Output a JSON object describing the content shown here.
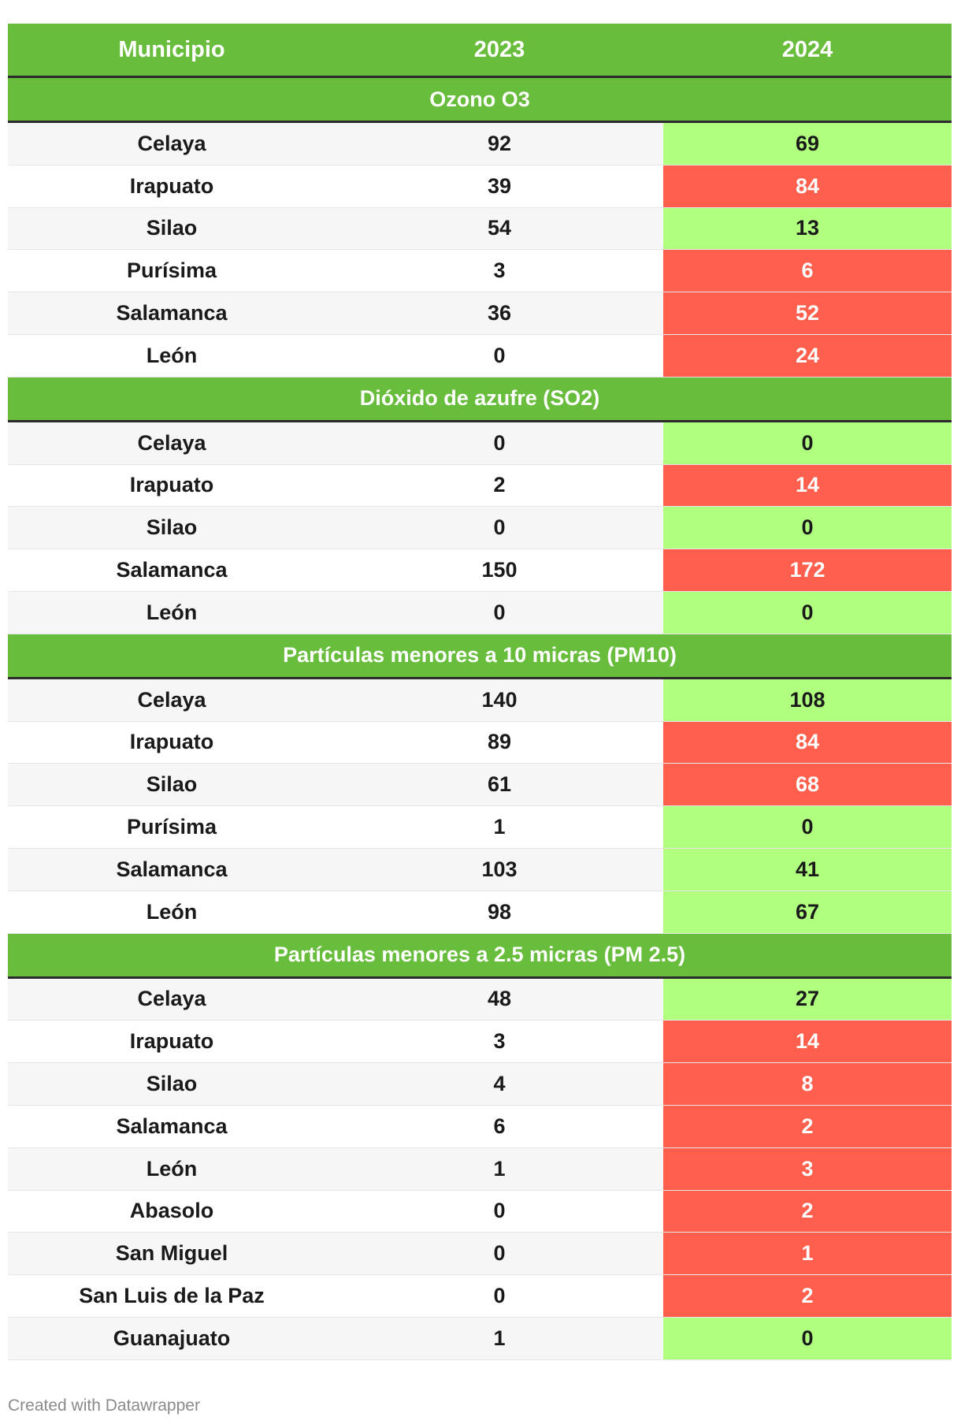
{
  "chart_data": {
    "type": "table",
    "columns": [
      "Municipio",
      "2023",
      "2024"
    ],
    "colors": {
      "header": "#68bd3c",
      "good": "#b1ff7e",
      "bad": "#ff5f4c"
    },
    "sections": [
      {
        "title": "Ozono O3",
        "rows": [
          {
            "municipio": "Celaya",
            "y2023": "92",
            "y2024": "69",
            "status": "good"
          },
          {
            "municipio": "Irapuato",
            "y2023": "39",
            "y2024": "84",
            "status": "bad"
          },
          {
            "municipio": "Silao",
            "y2023": "54",
            "y2024": "13",
            "status": "good"
          },
          {
            "municipio": "Purísima",
            "y2023": "3",
            "y2024": "6",
            "status": "bad"
          },
          {
            "municipio": "Salamanca",
            "y2023": "36",
            "y2024": "52",
            "status": "bad"
          },
          {
            "municipio": "León",
            "y2023": "0",
            "y2024": "24",
            "status": "bad"
          }
        ]
      },
      {
        "title": "Dióxido de azufre (SO2)",
        "rows": [
          {
            "municipio": "Celaya",
            "y2023": "0",
            "y2024": "0",
            "status": "good"
          },
          {
            "municipio": "Irapuato",
            "y2023": "2",
            "y2024": "14",
            "status": "bad"
          },
          {
            "municipio": "Silao",
            "y2023": "0",
            "y2024": "0",
            "status": "good"
          },
          {
            "municipio": "Salamanca",
            "y2023": "150",
            "y2024": "172",
            "status": "bad"
          },
          {
            "municipio": "León",
            "y2023": "0",
            "y2024": "0",
            "status": "good"
          }
        ]
      },
      {
        "title": "Partículas menores a 10 micras (PM10)",
        "rows": [
          {
            "municipio": "Celaya",
            "y2023": "140",
            "y2024": "108",
            "status": "good"
          },
          {
            "municipio": "Irapuato",
            "y2023": "89",
            "y2024": "84",
            "status": "bad"
          },
          {
            "municipio": "Silao",
            "y2023": "61",
            "y2024": "68",
            "status": "bad"
          },
          {
            "municipio": "Purísima",
            "y2023": "1",
            "y2024": "0",
            "status": "good"
          },
          {
            "municipio": "Salamanca",
            "y2023": "103",
            "y2024": "41",
            "status": "good"
          },
          {
            "municipio": "León",
            "y2023": "98",
            "y2024": "67",
            "status": "good"
          }
        ]
      },
      {
        "title": "Partículas menores a 2.5 micras (PM 2.5)",
        "rows": [
          {
            "municipio": "Celaya",
            "y2023": "48",
            "y2024": "27",
            "status": "good"
          },
          {
            "municipio": "Irapuato",
            "y2023": "3",
            "y2024": "14",
            "status": "bad"
          },
          {
            "municipio": "Silao",
            "y2023": "4",
            "y2024": "8",
            "status": "bad"
          },
          {
            "municipio": "Salamanca",
            "y2023": "6",
            "y2024": "2",
            "status": "bad"
          },
          {
            "municipio": "León",
            "y2023": "1",
            "y2024": "3",
            "status": "bad"
          },
          {
            "municipio": "Abasolo",
            "y2023": "0",
            "y2024": "2",
            "status": "bad"
          },
          {
            "municipio": "San Miguel",
            "y2023": "0",
            "y2024": "1",
            "status": "bad"
          },
          {
            "municipio": "San Luis de la Paz",
            "y2023": "0",
            "y2024": "2",
            "status": "bad"
          },
          {
            "municipio": "Guanajuato",
            "y2023": "1",
            "y2024": "0",
            "status": "good"
          }
        ]
      }
    ]
  },
  "footer": {
    "credit": "Created with Datawrapper"
  }
}
